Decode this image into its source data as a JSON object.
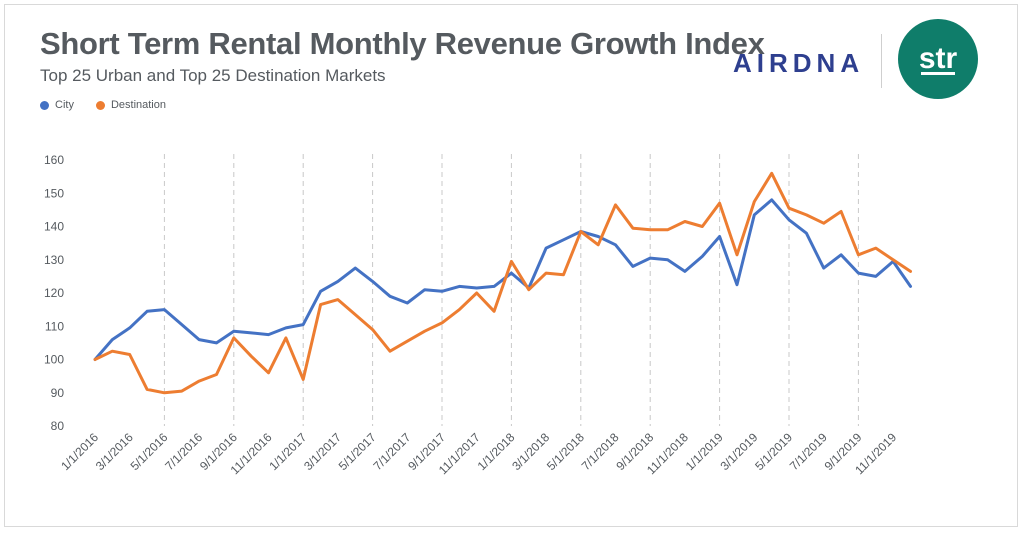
{
  "header": {
    "title": "Short Term Rental Monthly Revenue Growth Index",
    "subtitle": "Top 25 Urban and Top 25 Destination Markets"
  },
  "logos": {
    "airdna": "AIRDNA",
    "str": "str"
  },
  "colors": {
    "city": "#4472c4",
    "destination": "#ed7d31",
    "text": "#555a5f",
    "brand_airdna": "#2e3f8f",
    "brand_str": "#0f7d6a"
  },
  "chart_data": {
    "type": "line",
    "title": "Short Term Rental Monthly Revenue Growth Index",
    "subtitle": "Top 25 Urban and Top 25 Destination Markets",
    "xlabel": "",
    "ylabel": "",
    "ylim": [
      80,
      160
    ],
    "yticks": [
      80,
      90,
      100,
      110,
      120,
      130,
      140,
      150,
      160
    ],
    "legend_position": "top-left",
    "grid": "vertical dashed",
    "x": [
      "1/1/2016",
      "2/1/2016",
      "3/1/2016",
      "4/1/2016",
      "5/1/2016",
      "6/1/2016",
      "7/1/2016",
      "8/1/2016",
      "9/1/2016",
      "10/1/2016",
      "11/1/2016",
      "12/1/2016",
      "1/1/2017",
      "2/1/2017",
      "3/1/2017",
      "4/1/2017",
      "5/1/2017",
      "6/1/2017",
      "7/1/2017",
      "8/1/2017",
      "9/1/2017",
      "10/1/2017",
      "11/1/2017",
      "12/1/2017",
      "1/1/2018",
      "2/1/2018",
      "3/1/2018",
      "4/1/2018",
      "5/1/2018",
      "6/1/2018",
      "7/1/2018",
      "8/1/2018",
      "9/1/2018",
      "10/1/2018",
      "11/1/2018",
      "12/1/2018",
      "1/1/2019",
      "2/1/2019",
      "3/1/2019",
      "4/1/2019",
      "5/1/2019",
      "6/1/2019",
      "7/1/2019",
      "8/1/2019",
      "9/1/2019",
      "10/1/2019",
      "11/1/2019",
      "12/1/2019"
    ],
    "xtick_labels": [
      "1/1/2016",
      "3/1/2016",
      "5/1/2016",
      "7/1/2016",
      "9/1/2016",
      "11/1/2016",
      "1/1/2017",
      "3/1/2017",
      "5/1/2017",
      "7/1/2017",
      "9/1/2017",
      "11/1/2017",
      "1/1/2018",
      "3/1/2018",
      "5/1/2018",
      "7/1/2018",
      "9/1/2018",
      "11/1/2018",
      "1/1/2019",
      "3/1/2019",
      "5/1/2019",
      "7/1/2019",
      "9/1/2019",
      "11/1/2019"
    ],
    "series": [
      {
        "name": "City",
        "color": "#4472c4",
        "values": [
          100,
          106,
          109.5,
          114.5,
          115,
          110.5,
          106,
          105,
          108.5,
          108,
          107.5,
          109.5,
          110.5,
          120.5,
          123.5,
          127.5,
          123.5,
          119,
          117,
          121,
          120.5,
          122,
          121.5,
          122,
          126,
          121.5,
          133.5,
          136,
          138.5,
          137,
          134.5,
          128,
          130.5,
          130,
          126.5,
          131,
          137,
          122.5,
          143.5,
          148,
          142,
          138,
          127.5,
          131.5,
          126,
          125,
          129.5,
          122
        ]
      },
      {
        "name": "Destination",
        "color": "#ed7d31",
        "values": [
          100,
          102.5,
          101.5,
          91,
          90,
          90.5,
          93.5,
          95.5,
          106.5,
          101,
          96,
          106.5,
          94,
          116.5,
          118,
          113.5,
          109,
          102.5,
          105.5,
          108.5,
          111,
          115,
          120,
          114.5,
          129.5,
          121,
          126,
          125.5,
          138.5,
          134.5,
          146.5,
          139.5,
          139,
          139,
          141.5,
          140,
          147,
          131.5,
          147.5,
          156,
          145.5,
          143.5,
          141,
          144.5,
          131.5,
          133.5,
          130,
          126.5
        ]
      }
    ]
  }
}
